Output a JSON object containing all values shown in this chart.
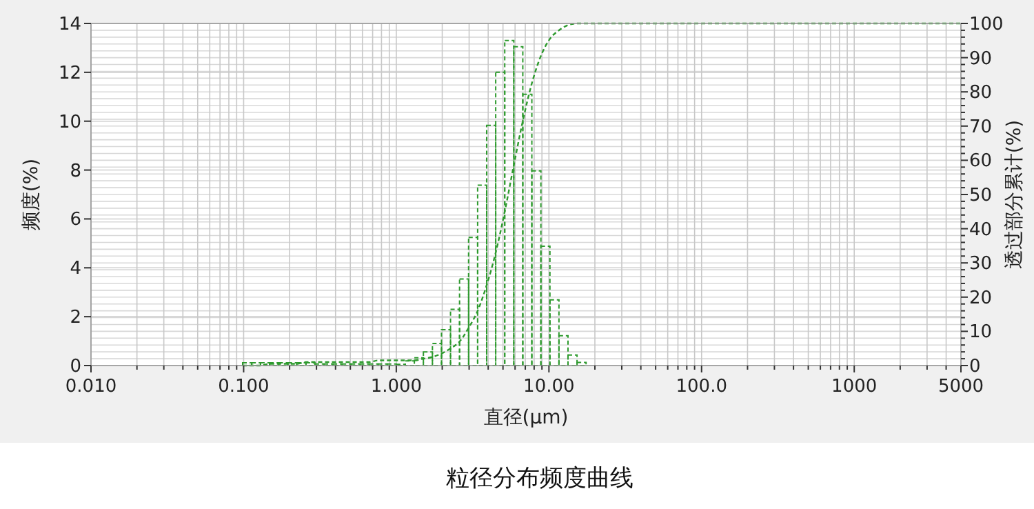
{
  "chart_data": {
    "type": "histogram",
    "title": "粒径分布频度曲线",
    "xlabel": "直径(μm)",
    "ylabel": "频度(%)",
    "y2label": "透过部分累计(%)",
    "log": "x",
    "grid": true,
    "line_style": "dashed",
    "marker": "none",
    "xlim": [
      0.01,
      5000
    ],
    "xticks": [
      {
        "value": 0.01,
        "label": "0.010"
      },
      {
        "value": 0.02,
        "label": null
      },
      {
        "value": 0.03,
        "label": null
      },
      {
        "value": 0.04,
        "label": null
      },
      {
        "value": 0.05,
        "label": null
      },
      {
        "value": 0.06,
        "label": null
      },
      {
        "value": 0.07,
        "label": null
      },
      {
        "value": 0.08,
        "label": null
      },
      {
        "value": 0.09,
        "label": null
      },
      {
        "value": 0.1,
        "label": "0.100"
      },
      {
        "value": 0.2,
        "label": null
      },
      {
        "value": 0.3,
        "label": null
      },
      {
        "value": 0.4,
        "label": null
      },
      {
        "value": 0.5,
        "label": null
      },
      {
        "value": 0.6,
        "label": null
      },
      {
        "value": 0.7,
        "label": null
      },
      {
        "value": 0.8,
        "label": null
      },
      {
        "value": 0.9,
        "label": null
      },
      {
        "value": 1,
        "label": "1.000"
      },
      {
        "value": 2,
        "label": null
      },
      {
        "value": 3,
        "label": null
      },
      {
        "value": 4,
        "label": null
      },
      {
        "value": 5,
        "label": null
      },
      {
        "value": 6,
        "label": null
      },
      {
        "value": 7,
        "label": null
      },
      {
        "value": 8,
        "label": null
      },
      {
        "value": 9,
        "label": null
      },
      {
        "value": 10,
        "label": "10.00"
      },
      {
        "value": 20,
        "label": null
      },
      {
        "value": 30,
        "label": null
      },
      {
        "value": 40,
        "label": null
      },
      {
        "value": 50,
        "label": null
      },
      {
        "value": 60,
        "label": null
      },
      {
        "value": 70,
        "label": null
      },
      {
        "value": 80,
        "label": null
      },
      {
        "value": 90,
        "label": null
      },
      {
        "value": 100,
        "label": "100.0"
      },
      {
        "value": 200,
        "label": null
      },
      {
        "value": 300,
        "label": null
      },
      {
        "value": 400,
        "label": null
      },
      {
        "value": 500,
        "label": null
      },
      {
        "value": 600,
        "label": null
      },
      {
        "value": 700,
        "label": null
      },
      {
        "value": 800,
        "label": null
      },
      {
        "value": 900,
        "label": null
      },
      {
        "value": 1000,
        "label": "1000"
      },
      {
        "value": 2000,
        "label": null
      },
      {
        "value": 3000,
        "label": null
      },
      {
        "value": 4000,
        "label": null
      },
      {
        "value": 5000,
        "label": "5000"
      }
    ],
    "ylim": [
      0,
      14
    ],
    "yticks": [
      0,
      2,
      4,
      6,
      8,
      10,
      12,
      14
    ],
    "y2lim": [
      0,
      100
    ],
    "y2ticks": [
      0,
      {
        "value": 2,
        "label": null
      },
      {
        "value": 4,
        "label": null
      },
      {
        "value": 6,
        "label": null
      },
      {
        "value": 8,
        "label": null
      },
      10,
      {
        "value": 12,
        "label": null
      },
      {
        "value": 14,
        "label": null
      },
      {
        "value": 16,
        "label": null
      },
      {
        "value": 18,
        "label": null
      },
      20,
      {
        "value": 22,
        "label": null
      },
      {
        "value": 24,
        "label": null
      },
      {
        "value": 26,
        "label": null
      },
      {
        "value": 28,
        "label": null
      },
      30,
      {
        "value": 32,
        "label": null
      },
      {
        "value": 34,
        "label": null
      },
      {
        "value": 36,
        "label": null
      },
      {
        "value": 38,
        "label": null
      },
      40,
      {
        "value": 42,
        "label": null
      },
      {
        "value": 44,
        "label": null
      },
      {
        "value": 46,
        "label": null
      },
      {
        "value": 48,
        "label": null
      },
      50,
      {
        "value": 52,
        "label": null
      },
      {
        "value": 54,
        "label": null
      },
      {
        "value": 56,
        "label": null
      },
      {
        "value": 58,
        "label": null
      },
      60,
      {
        "value": 62,
        "label": null
      },
      {
        "value": 64,
        "label": null
      },
      {
        "value": 66,
        "label": null
      },
      {
        "value": 68,
        "label": null
      },
      70,
      {
        "value": 72,
        "label": null
      },
      {
        "value": 74,
        "label": null
      },
      {
        "value": 76,
        "label": null
      },
      {
        "value": 78,
        "label": null
      },
      80,
      {
        "value": 82,
        "label": null
      },
      {
        "value": 84,
        "label": null
      },
      {
        "value": 86,
        "label": null
      },
      {
        "value": 88,
        "label": null
      },
      90,
      {
        "value": 92,
        "label": null
      },
      {
        "value": 94,
        "label": null
      },
      {
        "value": 96,
        "label": null
      },
      {
        "value": 98,
        "label": null
      },
      100
    ],
    "bins": [
      0.0985,
      0.113,
      0.129,
      0.148,
      0.17,
      0.195,
      0.223,
      0.256,
      0.293,
      0.336,
      0.385,
      0.441,
      0.505,
      0.579,
      0.664,
      0.76,
      0.872,
      1.0,
      1.146,
      1.313,
      1.505,
      1.725,
      1.977,
      2.266,
      2.597,
      2.976,
      3.411,
      3.909,
      4.48,
      5.134,
      5.884,
      6.743,
      7.728,
      8.856,
      10.15,
      11.63,
      13.33,
      15.28,
      17.51
    ],
    "series": [
      {
        "color": "#2e9a2e",
        "values": [
          0.11,
          0.11,
          0.11,
          0.11,
          0.11,
          0.11,
          0.11,
          0.11,
          0.06,
          0.06,
          0.06,
          0.06,
          0.06,
          0.06,
          0.06,
          0.06,
          0.06,
          0.05,
          0.19,
          0.32,
          0.56,
          0.9,
          1.47,
          2.3,
          3.54,
          5.24,
          7.38,
          9.83,
          12.0,
          13.3,
          13.05,
          11.1,
          7.97,
          4.88,
          2.69,
          1.22,
          0.43,
          0.13
        ]
      },
      {
        "type": "line",
        "axis": "y2",
        "color": "#2e9a2e",
        "x": [
          0.0985,
          0.113,
          0.129,
          0.148,
          0.17,
          0.195,
          0.223,
          0.256,
          0.293,
          0.336,
          0.385,
          0.441,
          0.505,
          0.579,
          0.664,
          0.76,
          0.872,
          1.0,
          1.146,
          1.313,
          1.505,
          1.725,
          1.977,
          2.266,
          2.597,
          2.976,
          3.411,
          3.909,
          4.48,
          5.134,
          5.884,
          6.743,
          7.728,
          8.856,
          10.15,
          11.63,
          13.33,
          15.28,
          17.51,
          30,
          5000
        ],
        "values": [
          0,
          0,
          0,
          0.5,
          0.5,
          0.5,
          0.5,
          1,
          1,
          1,
          1,
          1,
          1,
          1,
          1,
          1.5,
          1.5,
          1.5,
          1.5,
          1.5,
          2,
          2.5,
          3.5,
          5,
          7,
          11,
          16,
          23.5,
          33,
          45,
          58.5,
          71.5,
          82.5,
          90.5,
          95.5,
          98,
          99.5,
          100,
          100,
          100,
          100
        ]
      }
    ]
  }
}
